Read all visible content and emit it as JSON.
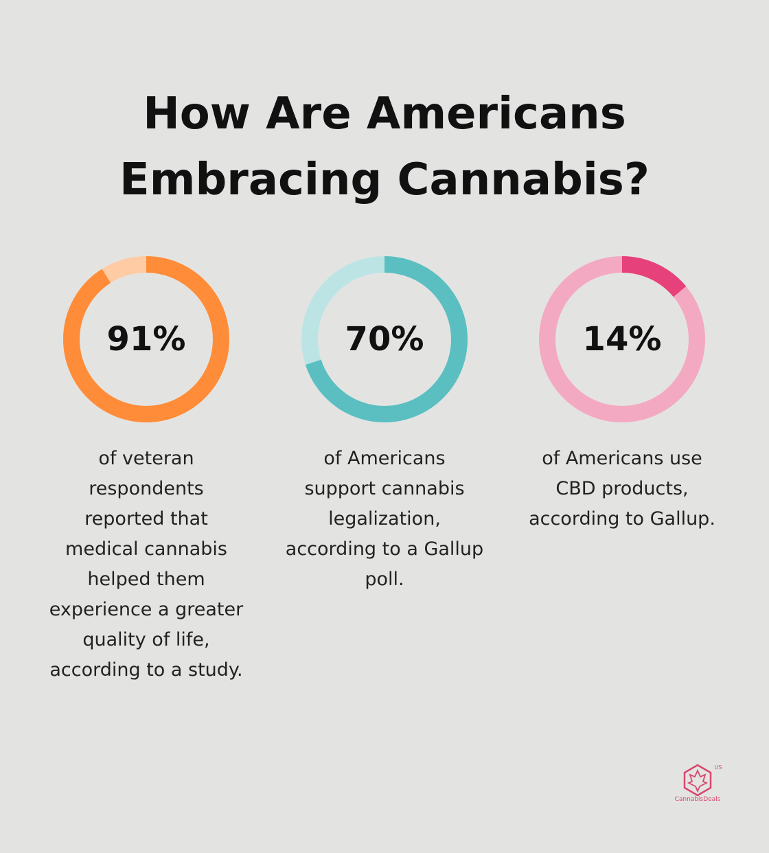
{
  "title": "How Are Americans Embracing Cannabis?",
  "chart_data": [
    {
      "type": "donut",
      "values": [
        91
      ],
      "value_labels": [
        "91%"
      ],
      "color": "#ff8c38",
      "track_color": "#ffcba4",
      "caption": [
        "of veteran",
        "respondents",
        "reported that",
        "medical cannabis",
        "helped them",
        "experience a greater",
        "quality of life,",
        "according to a study."
      ]
    },
    {
      "type": "donut",
      "values": [
        70
      ],
      "value_labels": [
        "70%"
      ],
      "color": "#5bbfc1",
      "track_color": "#bde4e5",
      "caption": [
        "of Americans",
        "support cannabis",
        "legalization,",
        "according to a Gallup",
        "poll."
      ]
    },
    {
      "type": "donut",
      "values": [
        14
      ],
      "value_labels": [
        "14%"
      ],
      "color": "#e6417a",
      "track_color": "#f4a9c2",
      "caption": [
        "of Americans use",
        "CBD products,",
        "according to Gallup."
      ]
    }
  ],
  "logo": {
    "name": "CannabisDeals",
    "region": "US"
  }
}
